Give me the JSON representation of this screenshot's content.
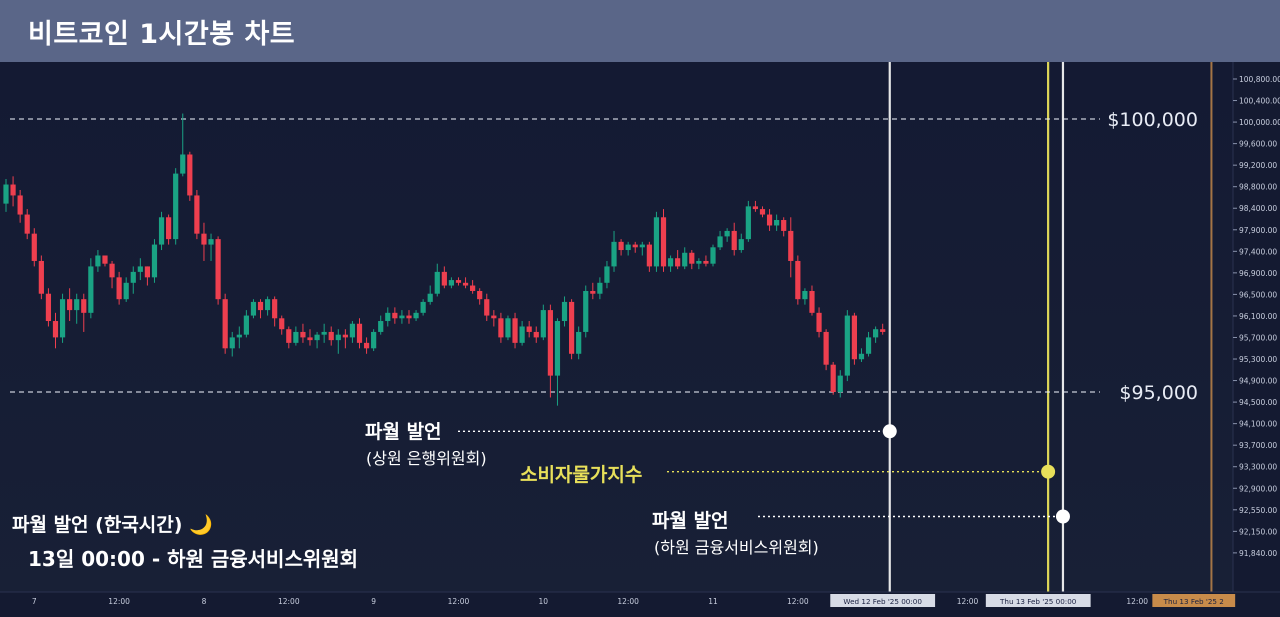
{
  "header": {
    "title": "비트코인 1시간봉 차트"
  },
  "colors": {
    "up": "#1aa384",
    "down": "#ee3f4f",
    "level": "#e8ecf5",
    "event_white": "#f2f2f2",
    "event_yellow": "#e8e05a",
    "event_orange": "#c88b4a"
  },
  "chart_data": {
    "type": "candlestick",
    "title": "비트코인 1시간봉 차트",
    "interval": "1h",
    "y_axis": {
      "position": "right",
      "range": [
        91600,
        101000
      ],
      "tick_labels": [
        "100,800.00",
        "100,400.00",
        "100,000.00",
        "99,600.00",
        "99,200.00",
        "98,800.00",
        "98,400.00",
        "97,900.00",
        "97,400.00",
        "96,900.00",
        "96,500.00",
        "96,100.00",
        "95,700.00",
        "95,300.00",
        "94,900.00",
        "94,500.00",
        "94,100.00",
        "93,700.00",
        "93,300.00",
        "92,900.00",
        "92,550.00",
        "92,150.00",
        "91,840.00"
      ],
      "tick_values": [
        100800,
        100400,
        100000,
        99600,
        99200,
        98800,
        98400,
        97900,
        97400,
        96900,
        96500,
        96100,
        95700,
        95300,
        94900,
        94500,
        94100,
        93700,
        93300,
        92900,
        92550,
        92150,
        91840
      ]
    },
    "x_axis": {
      "labels": [
        {
          "label": "7",
          "index": 4
        },
        {
          "label": "12:00",
          "index": 16
        },
        {
          "label": "8",
          "index": 28
        },
        {
          "label": "12:00",
          "index": 40
        },
        {
          "label": "9",
          "index": 52
        },
        {
          "label": "12:00",
          "index": 64
        },
        {
          "label": "10",
          "index": 76
        },
        {
          "label": "12:00",
          "index": 88
        },
        {
          "label": "11",
          "index": 100
        },
        {
          "label": "12:00",
          "index": 112
        },
        {
          "label": "12:00",
          "index": 136
        },
        {
          "label": "12:00",
          "index": 160
        }
      ],
      "highlight_labels": [
        {
          "label": "Wed 12 Feb '25   00:00",
          "index": 124,
          "style": "light"
        },
        {
          "label": "We",
          "index": 142.3,
          "style": "yellow"
        },
        {
          "label": "Thu 13 Feb '25   00:00",
          "index": 146,
          "style": "light"
        },
        {
          "label": "Thu 13 Feb '25  2",
          "index": 168,
          "style": "orange"
        }
      ]
    },
    "levels": [
      {
        "price": 100000,
        "label": "$100,000"
      },
      {
        "price": 95000,
        "label": "$95,000"
      }
    ],
    "events": [
      {
        "label": "파월 발언",
        "sub": "(상원 은행위원회)",
        "index": 125,
        "price": 94280,
        "color": "white"
      },
      {
        "label": "소비자물가지수",
        "sub": "",
        "index": 147.4,
        "price": 93540,
        "color": "yellow"
      },
      {
        "label": "파월 발언",
        "sub": "(하원 금융서비스위원회)",
        "index": 149.5,
        "price": 92720,
        "color": "white"
      },
      {
        "label": "",
        "sub": "",
        "index": 170.5,
        "price": null,
        "color": "orange"
      }
    ],
    "notes": {
      "line1": "파월 발언 (한국시간) 🌙",
      "line2": "13일 00:00 - 하원 금융서비스위원회"
    },
    "candles": [
      [
        98450,
        98900,
        98300,
        98800
      ],
      [
        98800,
        98950,
        98400,
        98600
      ],
      [
        98600,
        98700,
        98100,
        98250
      ],
      [
        98250,
        98350,
        97800,
        97900
      ],
      [
        97900,
        98000,
        97300,
        97400
      ],
      [
        97400,
        97500,
        96700,
        96800
      ],
      [
        96800,
        96900,
        96200,
        96300
      ],
      [
        96300,
        96450,
        95800,
        96000
      ],
      [
        96000,
        96800,
        95900,
        96700
      ],
      [
        96700,
        96900,
        96300,
        96500
      ],
      [
        96500,
        96800,
        96250,
        96700
      ],
      [
        96700,
        96800,
        96100,
        96450
      ],
      [
        96450,
        97450,
        96350,
        97300
      ],
      [
        97300,
        97600,
        97200,
        97500
      ],
      [
        97500,
        97500,
        97300,
        97350
      ],
      [
        97350,
        97400,
        96900,
        97100
      ],
      [
        97100,
        97200,
        96600,
        96700
      ],
      [
        96700,
        97100,
        96650,
        97000
      ],
      [
        97000,
        97300,
        96800,
        97200
      ],
      [
        97200,
        97450,
        97050,
        97300
      ],
      [
        97300,
        97300,
        96950,
        97100
      ],
      [
        97100,
        97800,
        97000,
        97700
      ],
      [
        97700,
        98300,
        97600,
        98200
      ],
      [
        98200,
        98250,
        97700,
        97800
      ],
      [
        97800,
        99100,
        97700,
        99000
      ],
      [
        99000,
        100100,
        98950,
        99350
      ],
      [
        99350,
        99400,
        98500,
        98600
      ],
      [
        98600,
        98700,
        97800,
        97900
      ],
      [
        97900,
        98100,
        97400,
        97700
      ],
      [
        97700,
        97900,
        97400,
        97800
      ],
      [
        97800,
        97850,
        96600,
        96700
      ],
      [
        96700,
        96800,
        95700,
        95800
      ],
      [
        95800,
        96100,
        95650,
        96000
      ],
      [
        96000,
        96200,
        95800,
        96050
      ],
      [
        96050,
        96500,
        96000,
        96400
      ],
      [
        96400,
        96700,
        96350,
        96650
      ],
      [
        96650,
        96700,
        96350,
        96500
      ],
      [
        96500,
        96750,
        96400,
        96700
      ],
      [
        96700,
        96750,
        96200,
        96350
      ],
      [
        96350,
        96400,
        96050,
        96150
      ],
      [
        96150,
        96200,
        95800,
        95900
      ],
      [
        95900,
        96200,
        95850,
        96100
      ],
      [
        96100,
        96250,
        95900,
        96000
      ],
      [
        96000,
        96150,
        95850,
        95950
      ],
      [
        95950,
        96100,
        95800,
        96050
      ],
      [
        96050,
        96250,
        95900,
        96100
      ],
      [
        96100,
        96200,
        95850,
        95950
      ],
      [
        95950,
        96150,
        95700,
        96050
      ],
      [
        96050,
        96150,
        95800,
        96000
      ],
      [
        96000,
        96300,
        95900,
        96250
      ],
      [
        96250,
        96350,
        95800,
        95900
      ],
      [
        95900,
        96000,
        95700,
        95800
      ],
      [
        95800,
        96150,
        95750,
        96100
      ],
      [
        96100,
        96400,
        96050,
        96300
      ],
      [
        96300,
        96550,
        96200,
        96450
      ],
      [
        96450,
        96550,
        96250,
        96350
      ],
      [
        96350,
        96500,
        96250,
        96400
      ],
      [
        96400,
        96500,
        96250,
        96350
      ],
      [
        96350,
        96500,
        96300,
        96450
      ],
      [
        96450,
        96700,
        96400,
        96650
      ],
      [
        96650,
        96950,
        96600,
        96800
      ],
      [
        96800,
        97350,
        96750,
        97200
      ],
      [
        97200,
        97300,
        96900,
        96950
      ],
      [
        96950,
        97100,
        96900,
        97050
      ],
      [
        97050,
        97100,
        96950,
        97000
      ],
      [
        97000,
        97100,
        96900,
        96950
      ],
      [
        96950,
        97050,
        96800,
        96850
      ],
      [
        96850,
        96900,
        96600,
        96700
      ],
      [
        96700,
        96800,
        96300,
        96400
      ],
      [
        96400,
        96500,
        96200,
        96350
      ],
      [
        96350,
        96450,
        95900,
        96000
      ],
      [
        96000,
        96400,
        95950,
        96350
      ],
      [
        96350,
        96450,
        95800,
        95900
      ],
      [
        95900,
        96300,
        95850,
        96200
      ],
      [
        96200,
        96300,
        96000,
        96100
      ],
      [
        96100,
        96200,
        95900,
        96000
      ],
      [
        96000,
        96600,
        95950,
        96500
      ],
      [
        96500,
        96600,
        94900,
        95300
      ],
      [
        95300,
        96350,
        94750,
        96300
      ],
      [
        96300,
        96750,
        96200,
        96650
      ],
      [
        96650,
        96700,
        95600,
        95700
      ],
      [
        95700,
        96200,
        95600,
        96100
      ],
      [
        96100,
        96950,
        96000,
        96850
      ],
      [
        96850,
        97000,
        96700,
        96800
      ],
      [
        96800,
        97100,
        96700,
        97000
      ],
      [
        97000,
        97400,
        96900,
        97300
      ],
      [
        97300,
        97950,
        97200,
        97750
      ],
      [
        97750,
        97800,
        97500,
        97600
      ],
      [
        97600,
        97750,
        97500,
        97700
      ],
      [
        97700,
        97750,
        97550,
        97650
      ],
      [
        97650,
        97750,
        97500,
        97700
      ],
      [
        97700,
        97750,
        97200,
        97300
      ],
      [
        97300,
        98300,
        97200,
        98200
      ],
      [
        98200,
        98350,
        97200,
        97300
      ],
      [
        97300,
        97500,
        97200,
        97450
      ],
      [
        97450,
        97600,
        97250,
        97300
      ],
      [
        97300,
        97650,
        97250,
        97550
      ],
      [
        97550,
        97600,
        97250,
        97350
      ],
      [
        97350,
        97450,
        97250,
        97400
      ],
      [
        97400,
        97500,
        97300,
        97350
      ],
      [
        97350,
        97700,
        97300,
        97650
      ],
      [
        97650,
        97950,
        97600,
        97850
      ],
      [
        97850,
        98000,
        97750,
        97950
      ],
      [
        97950,
        98100,
        97500,
        97600
      ],
      [
        97600,
        97900,
        97550,
        97800
      ],
      [
        97800,
        98500,
        97750,
        98400
      ],
      [
        98400,
        98500,
        98300,
        98350
      ],
      [
        98350,
        98400,
        98200,
        98250
      ],
      [
        98250,
        98350,
        97950,
        98050
      ],
      [
        98050,
        98250,
        97950,
        98150
      ],
      [
        98150,
        98200,
        97850,
        97950
      ],
      [
        97950,
        98200,
        97100,
        97400
      ],
      [
        97400,
        97500,
        96600,
        96700
      ],
      [
        96700,
        96900,
        96600,
        96850
      ],
      [
        96850,
        96950,
        96400,
        96450
      ],
      [
        96450,
        96550,
        96000,
        96100
      ],
      [
        96100,
        96150,
        95400,
        95500
      ],
      [
        95500,
        95550,
        94950,
        95000
      ],
      [
        95000,
        95400,
        94900,
        95300
      ],
      [
        95300,
        96500,
        95200,
        96400
      ],
      [
        96400,
        96450,
        95500,
        95600
      ],
      [
        95600,
        95800,
        95550,
        95700
      ],
      [
        95700,
        96100,
        95650,
        96000
      ],
      [
        96000,
        96200,
        95900,
        96150
      ],
      [
        96150,
        96250,
        96050,
        96100
      ]
    ]
  }
}
